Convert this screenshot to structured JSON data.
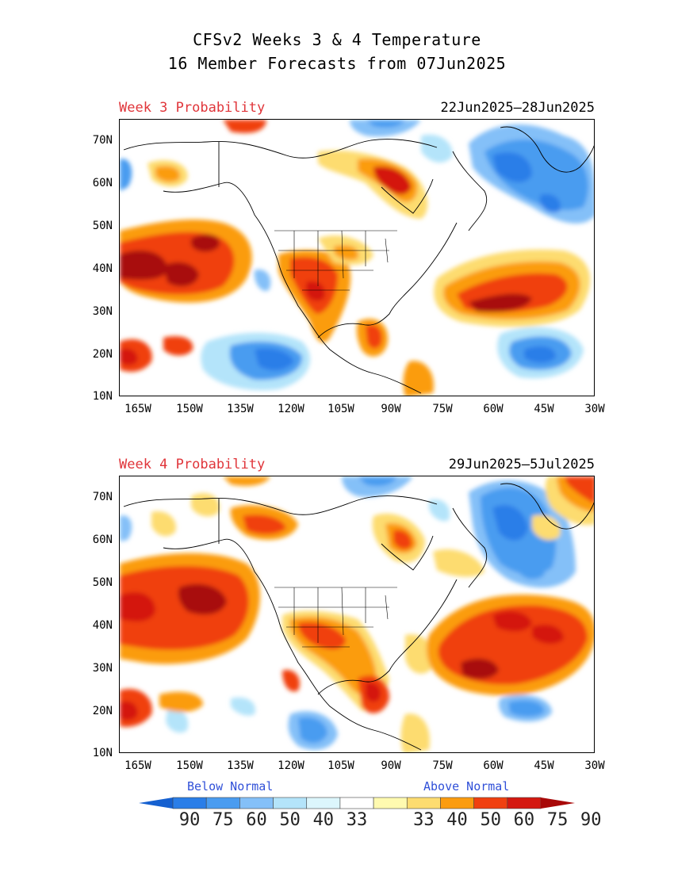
{
  "title": {
    "line1": "CFSv2 Weeks 3 & 4 Temperature",
    "line2": "16 Member Forecasts from 07Jun2025"
  },
  "panels": [
    {
      "label": "Week 3 Probability",
      "dates": "22Jun2025—28Jun2025"
    },
    {
      "label": "Week 4 Probability",
      "dates": "29Jun2025—5Jul2025"
    }
  ],
  "axes": {
    "lat_labels": [
      "70N",
      "60N",
      "50N",
      "40N",
      "30N",
      "20N",
      "10N"
    ],
    "lon_labels": [
      "165W",
      "150W",
      "135W",
      "120W",
      "105W",
      "90W",
      "75W",
      "60W",
      "45W",
      "30W"
    ]
  },
  "legend": {
    "below_label": "Below Normal",
    "above_label": "Above Normal",
    "values": [
      "90",
      "75",
      "60",
      "50",
      "40",
      "33",
      "33",
      "40",
      "50",
      "60",
      "75",
      "90"
    ],
    "colors": [
      "#1560d0",
      "#2a7ee8",
      "#4a9cf0",
      "#84c0f8",
      "#b4e4fa",
      "#dcf6fc",
      "#ffffff",
      "#fffab0",
      "#fddc70",
      "#fb9c10",
      "#f04010",
      "#d41810",
      "#a80808"
    ]
  }
}
